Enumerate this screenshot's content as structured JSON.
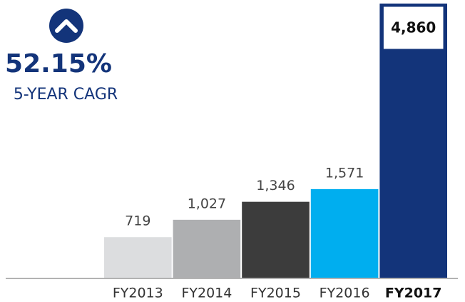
{
  "chart_data": {
    "type": "bar",
    "annotations": [
      "52.15%",
      "5-YEAR CAGR"
    ],
    "categories": [
      "FY2013",
      "FY2014",
      "FY2015",
      "FY2016",
      "FY2017"
    ],
    "values": [
      719,
      1027,
      1346,
      1571,
      4860
    ],
    "value_labels": [
      "719",
      "1,027",
      "1,346",
      "1,571",
      "4,860"
    ],
    "colors": [
      "#dcdddf",
      "#aeafb1",
      "#3c3c3c",
      "#00aeef",
      "#13347a"
    ]
  }
}
